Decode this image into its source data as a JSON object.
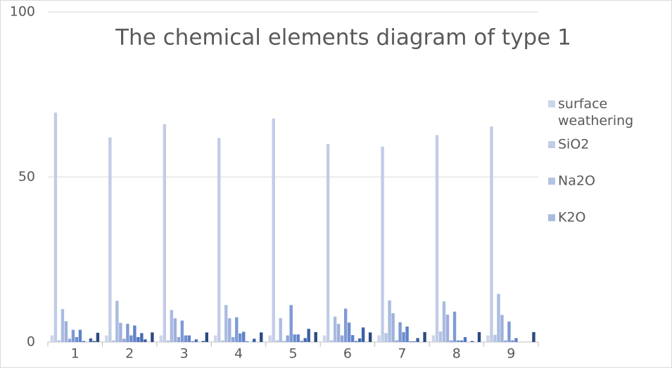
{
  "chart_data": {
    "type": "bar",
    "title": "The chemical elements diagram of type 1",
    "categories": [
      "1",
      "2",
      "3",
      "4",
      "5",
      "6",
      "7",
      "8",
      "9"
    ],
    "ylim": [
      0,
      100
    ],
    "yticks": [
      0,
      50,
      100
    ],
    "grid": true,
    "legend": "right",
    "series": [
      {
        "name": "surface weathering",
        "color": "#cdd5ea",
        "values": [
          2,
          2,
          2,
          2,
          2,
          2,
          2,
          2,
          2
        ]
      },
      {
        "name": "SiO2",
        "color": "#c2cce6",
        "values": [
          69.5,
          62,
          66,
          61.8,
          67.7,
          60,
          59.2,
          62.7,
          65.3
        ]
      },
      {
        "name": "Na2O",
        "color": "#b6c4e3",
        "values": [
          0.5,
          0.5,
          0.5,
          0.5,
          0.5,
          0.5,
          2.7,
          3.2,
          2.2
        ]
      },
      {
        "name": "K2O",
        "color": "#abbbe0",
        "values": [
          10,
          12.5,
          9.7,
          11.2,
          7.2,
          7.7,
          12.6,
          12.3,
          14.6
        ]
      },
      {
        "color": "#9eb1dc",
        "values": [
          6.3,
          5.8,
          7.2,
          7.2,
          0.3,
          5.5,
          8.7,
          8.3,
          8.2
        ]
      },
      {
        "color": "#8fa6d8",
        "values": [
          1,
          1,
          1.5,
          1.5,
          2,
          2,
          0.5,
          0.5,
          0.5
        ]
      },
      {
        "color": "#7f9ad4",
        "values": [
          3.7,
          5.5,
          6.5,
          7.5,
          11.2,
          10.1,
          6,
          9.2,
          6.2
        ]
      },
      {
        "color": "#6f8ecf",
        "values": [
          1.5,
          2,
          2,
          2.6,
          2.3,
          5.9,
          3,
          0.5,
          0.5
        ]
      },
      {
        "color": "#5f82ca",
        "values": [
          3.7,
          5,
          2,
          3.1,
          2.3,
          2.1,
          4.7,
          0.5,
          1.2
        ]
      },
      {
        "color": "#4f76c4",
        "values": [
          0.3,
          1.5,
          0.2,
          0.2,
          0.3,
          0.3,
          0.2,
          1.5,
          0
        ]
      },
      {
        "color": "#456bb4",
        "values": [
          0,
          2.7,
          0.8,
          0,
          1.2,
          1.1,
          0.2,
          0,
          0
        ]
      },
      {
        "color": "#3c60a3",
        "values": [
          1.1,
          0.8,
          0,
          1,
          4,
          4.4,
          1.2,
          0.3,
          0
        ]
      },
      {
        "color": "#335592",
        "values": [
          0.3,
          0,
          0.3,
          0,
          0,
          0,
          0,
          0,
          0
        ]
      },
      {
        "color": "#2a4a80",
        "values": [
          2.8,
          2.9,
          2.9,
          2.9,
          3,
          2.9,
          3,
          3,
          3
        ]
      }
    ]
  }
}
